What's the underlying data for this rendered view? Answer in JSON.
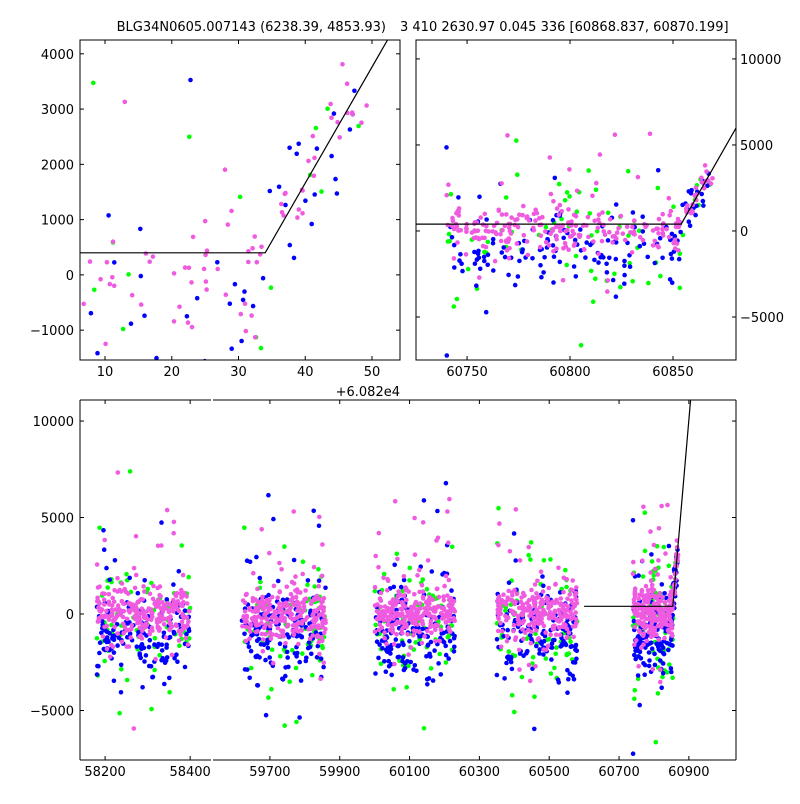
{
  "colors": {
    "magenta": "#f05ae0",
    "blue": "#0000ff",
    "green": "#00ff00",
    "fit": "#000000"
  },
  "chart_data": {
    "type": "scatter",
    "titles": [
      "BLG34N0605.007143 (6238.39, 4853.93)",
      "3 410 2630.97 0.045 336 [60868.837, 60870.199]"
    ],
    "series": [
      {
        "name": "magenta",
        "color": "#f05ae0",
        "y_center": 0,
        "y_spread": 700
      },
      {
        "name": "blue",
        "color": "#0000ff",
        "y_center": -1000,
        "y_spread": 1100
      },
      {
        "name": "green",
        "color": "#00ff00",
        "y_center": -700,
        "y_spread": 1600
      }
    ],
    "seasons": [
      [
        58180,
        58400
      ],
      [
        59620,
        59860
      ],
      [
        60000,
        60230
      ],
      [
        60350,
        60580
      ],
      [
        60740,
        60870
      ]
    ],
    "fit_model": {
      "baseline": 400,
      "kink_x": 60854,
      "slope_per_day": 210,
      "start_x": 60600
    },
    "panels": [
      {
        "id": "zoom-peak",
        "xlim": [
          60826.25,
          60874.2
        ],
        "ylim": [
          -1540,
          4250
        ],
        "xticks": [
          60830,
          60840,
          60850,
          60860,
          60870
        ],
        "xtick_labels": [
          "10",
          "20",
          "30",
          "40",
          "50"
        ],
        "x_offset_label": "+6.082e4",
        "yticks": [
          -1000,
          0,
          1000,
          2000,
          3000,
          4000
        ],
        "ytick_labels": [
          "−1000",
          "0",
          "1000",
          "2000",
          "3000",
          "4000"
        ],
        "yaxis": "left"
      },
      {
        "id": "zoom-season",
        "xlim": [
          60725.2,
          60880.6
        ],
        "ylim": [
          -7500,
          11100
        ],
        "xticks": [
          60750,
          60800,
          60850
        ],
        "xtick_labels": [
          "60750",
          "60800",
          "60850"
        ],
        "yticks": [
          -5000,
          0,
          5000,
          10000
        ],
        "ytick_labels": [
          "−5000",
          "0",
          "5000",
          "10000"
        ],
        "yaxis": "right"
      },
      {
        "id": "full-seg1",
        "xlim": [
          58141,
          58449
        ],
        "ylim": [
          -7565,
          11090
        ],
        "xticks": [
          58200,
          58400
        ],
        "xtick_labels": [
          "58200",
          "58400"
        ],
        "yticks": [
          -5000,
          0,
          5000,
          10000
        ],
        "ytick_labels": [
          "−5000",
          "0",
          "5000",
          "10000"
        ],
        "yaxis": "left"
      },
      {
        "id": "full-seg2",
        "xlim": [
          59537,
          61035
        ],
        "ylim": [
          -7565,
          11090
        ],
        "xticks": [
          59700,
          59900,
          60100,
          60300,
          60500,
          60700,
          60900
        ],
        "xtick_labels": [
          "59700",
          "59900",
          "60100",
          "60300",
          "60500",
          "60700",
          "60900"
        ],
        "yticks": [
          -5000,
          0,
          5000,
          10000
        ],
        "ytick_labels": [],
        "yaxis": "none"
      }
    ]
  }
}
